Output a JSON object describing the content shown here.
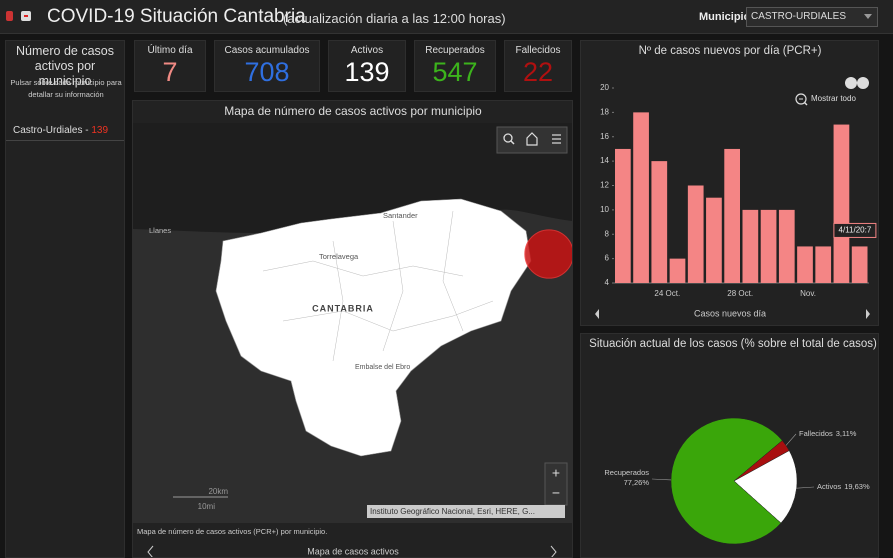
{
  "header": {
    "title": "COVID-19 Situación Cantabria",
    "subtitle": "(actualización diaria a las 12:00 horas)",
    "filter_label": "Municipio",
    "filter_value": "CASTRO-URDIALES"
  },
  "list_panel": {
    "title": "Número de casos activos por municipio",
    "hint": "Pulsar sobre cada municipio para detallar su información",
    "items": [
      {
        "name": "Castro-Urdiales -",
        "value": 139
      }
    ]
  },
  "kpis": [
    {
      "label": "Último día",
      "value": 7,
      "color": "#f08a84"
    },
    {
      "label": "Casos acumulados",
      "value": 708,
      "color": "#2f6fe0"
    },
    {
      "label": "Activos",
      "value": 139,
      "color": "#ffffff"
    },
    {
      "label": "Recuperados",
      "value": 547,
      "color": "#3cb31c"
    },
    {
      "label": "Fallecidos",
      "value": 22,
      "color": "#b01010"
    }
  ],
  "map": {
    "title": "Mapa de número de casos activos por municipio",
    "place_labels": [
      "Llanes",
      "Torrelavega",
      "Santander",
      "CANTABRIA",
      "Embalse del Ebro"
    ],
    "attribution": "Instituto Geográfico Nacional, Esri, HERE, G...",
    "scale": [
      "20km",
      "10mi"
    ],
    "zoom": [
      "+",
      "−"
    ],
    "caption": "Mapa de número de casos activos (PCR+) por municipio.",
    "tab": "Mapa de casos activos"
  },
  "chart_data": [
    {
      "type": "bar",
      "title": "Nº de casos nuevos por día (PCR+)",
      "x_label": "Casos nuevos día",
      "reset_label": "Mostrar todo",
      "categories": [
        null,
        null,
        "24 Oct.",
        null,
        null,
        null,
        "28 Oct.",
        null,
        null,
        null,
        "Nov.",
        null,
        null,
        null
      ],
      "values": [
        15,
        18,
        14,
        6,
        12,
        11,
        15,
        10,
        10,
        10,
        7,
        7,
        17,
        7
      ],
      "color": "#f48585",
      "ylim": [
        4,
        20
      ],
      "yticks": [
        4,
        6,
        8,
        10,
        12,
        14,
        16,
        18,
        20
      ],
      "annotation": "4/11/20:7"
    },
    {
      "type": "pie",
      "title": "Situación actual de los casos (% sobre el total de casos)",
      "categories": [
        "Fallecidos",
        "Activos",
        "Recuperados"
      ],
      "values": [
        3.11,
        19.63,
        77.26
      ],
      "value_labels": [
        "3,11%",
        "19,63%",
        "77,26%"
      ],
      "colors": [
        "#a80f0f",
        "#ffffff",
        "#3aa60a"
      ]
    }
  ]
}
